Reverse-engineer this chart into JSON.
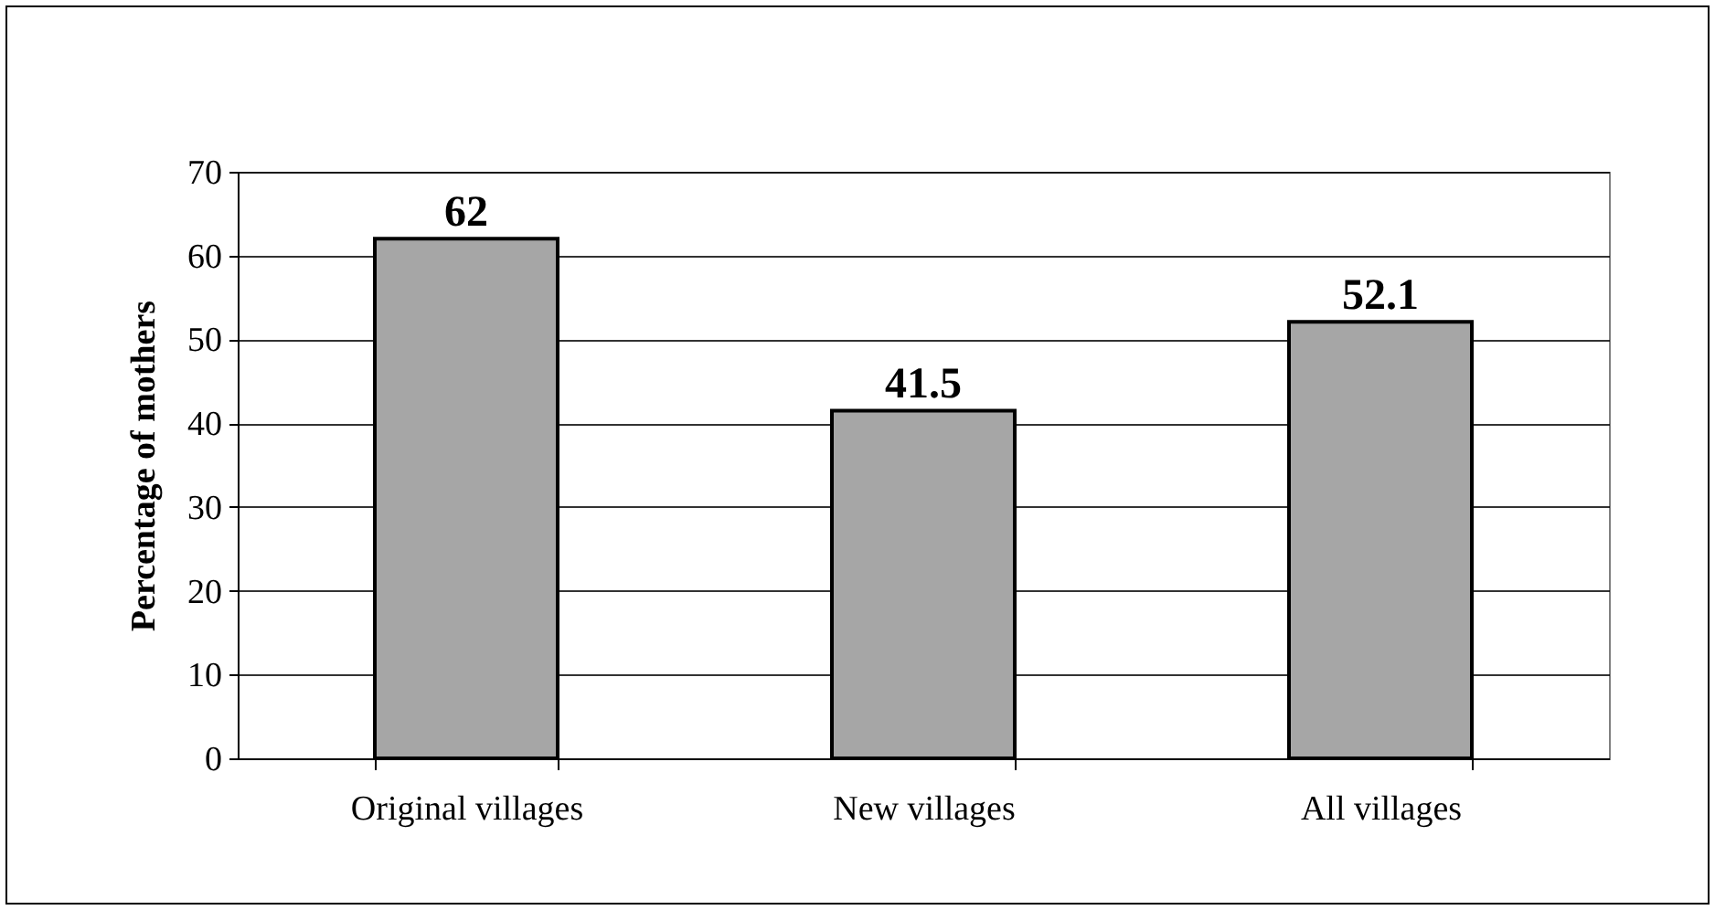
{
  "chart_data": {
    "type": "bar",
    "ylabel": "Percentage of mothers",
    "categories": [
      "Original villages",
      "New villages",
      "All villages"
    ],
    "values": [
      62,
      41.5,
      52.1
    ],
    "color": "#a6a6a6",
    "ylim": [
      0,
      70
    ],
    "yticks": [
      0,
      10,
      20,
      30,
      40,
      50,
      60,
      70
    ],
    "grid": "y",
    "data_labels": true
  }
}
